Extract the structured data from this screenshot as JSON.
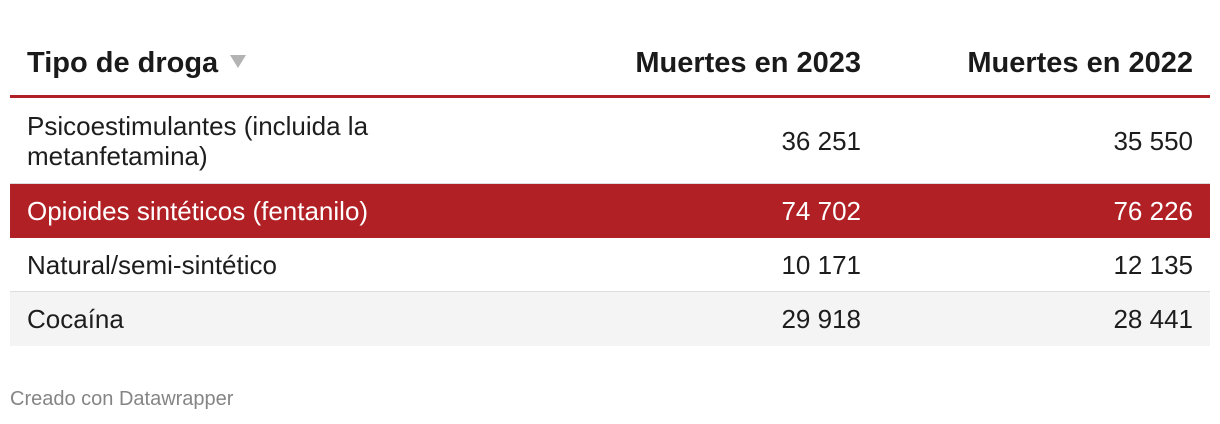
{
  "chart_data": {
    "type": "table",
    "columns": [
      "Tipo de droga",
      "Muertes en 2023",
      "Muertes en 2022"
    ],
    "rows": [
      {
        "name": "Psicoestimulantes (incluida la metanfetamina)",
        "deaths_2023": "36 251",
        "deaths_2022": "35 550"
      },
      {
        "name": "Opioides sintéticos (fentanilo)",
        "deaths_2023": "74 702",
        "deaths_2022": "76 226"
      },
      {
        "name": "Natural/semi-sintético",
        "deaths_2023": "10 171",
        "deaths_2022": "12 135"
      },
      {
        "name": "Cocaína",
        "deaths_2023": "29 918",
        "deaths_2022": "28 441"
      }
    ],
    "highlight_row": 1,
    "highlight_color": "#b12024"
  },
  "footer": "Creado con Datawrapper"
}
